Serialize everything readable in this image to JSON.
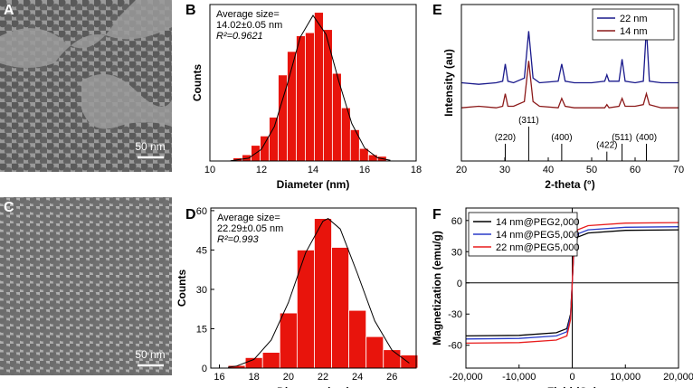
{
  "images": [
    {
      "label": "A",
      "scale_bar": "50 nm"
    },
    {
      "label": "C",
      "scale_bar": "50 nm"
    }
  ],
  "chart_data": [
    {
      "type": "histogram",
      "panel_label": "B",
      "xlabel": "Diameter (nm)",
      "ylabel": "Counts",
      "annotation": [
        "Average size=",
        "14.02±0.05 nm",
        "R²=0.9621"
      ],
      "bins": [
        10.9,
        11.25,
        11.6,
        11.95,
        12.3,
        12.65,
        13.0,
        13.35,
        13.7,
        14.05,
        14.4,
        14.75,
        15.1,
        15.45,
        15.8,
        16.15,
        16.5,
        16.85
      ],
      "values": [
        2,
        4,
        10,
        16,
        28,
        55,
        70,
        80,
        82,
        95,
        84,
        56,
        34,
        20,
        8,
        4,
        3
      ],
      "color": "#e8140c",
      "fit": {
        "x": [
          10.8,
          11.5,
          12,
          12.5,
          13,
          13.5,
          14,
          14.5,
          15,
          15.5,
          16,
          16.5,
          17
        ],
        "y": [
          0.15,
          1.8,
          7.5,
          22,
          49,
          79,
          93,
          81,
          51,
          24,
          8.3,
          2.1,
          0.4
        ]
      },
      "xlim": [
        10,
        18
      ],
      "xticks": [
        10,
        12,
        14,
        16,
        18
      ],
      "ylim": [
        0,
        100
      ]
    },
    {
      "type": "histogram",
      "panel_label": "D",
      "xlabel": "Diameter (nm)",
      "ylabel": "Counts",
      "annotation": [
        "Average size=",
        "22.29±0.05 nm",
        "R²=0.993"
      ],
      "bins": [
        16.5,
        17.5,
        18.5,
        19.5,
        20.5,
        21.5,
        22.5,
        23.5,
        24.5,
        25.5,
        26.5,
        27.5
      ],
      "values": [
        1,
        4,
        6,
        21,
        45,
        57,
        46,
        22,
        12,
        7,
        5
      ],
      "color": "#e8140c",
      "fit": {
        "x": [
          16.5,
          17,
          18,
          19,
          20,
          21,
          22,
          22.3,
          23,
          24,
          25,
          26,
          27
        ],
        "y": [
          0.3,
          0.8,
          3.3,
          10.7,
          25,
          44,
          56,
          57,
          53,
          36,
          18,
          6.8,
          1.9
        ]
      },
      "xlim": [
        15.5,
        27.4
      ],
      "xticks": [
        16,
        18,
        20,
        22,
        24,
        26
      ],
      "ylim": [
        0,
        61
      ],
      "yticks": [
        0,
        15,
        30,
        45,
        60
      ]
    },
    {
      "type": "line",
      "panel_label": "E",
      "xlabel": "2-theta (°)",
      "ylabel": "Intensity (au)",
      "legend": "upper right",
      "x": [
        20,
        24,
        28,
        29.5,
        30.1,
        30.7,
        32,
        34.5,
        35.5,
        36.5,
        38,
        42.3,
        43.1,
        43.9,
        46,
        50,
        53,
        53.5,
        54,
        56.3,
        57,
        57.7,
        60,
        61.9,
        62.6,
        63.3,
        66,
        70
      ],
      "series": [
        {
          "name": "22 nm",
          "color": "#1a1a8c",
          "values": [
            50,
            49,
            50,
            51,
            62,
            51,
            50,
            53,
            83,
            53,
            50,
            51,
            62,
            51,
            50,
            50,
            51,
            55,
            51,
            51,
            65,
            51,
            50,
            51,
            85,
            51,
            50,
            50
          ]
        },
        {
          "name": "14 nm",
          "color": "#8c1a1a",
          "values": [
            34,
            35,
            34,
            35,
            43,
            35,
            35,
            38,
            64,
            38,
            35,
            34,
            40,
            35,
            34,
            34,
            34,
            36,
            34,
            35,
            40,
            35,
            35,
            36,
            43,
            36,
            34,
            34
          ]
        }
      ],
      "reflections": [
        {
          "label": "(220)",
          "x": 30.1,
          "height": 11
        },
        {
          "label": "(311)",
          "x": 35.5,
          "height": 22
        },
        {
          "label": "(400)",
          "x": 43.1,
          "height": 11
        },
        {
          "label": "(422)",
          "x": 53.5,
          "height": 6
        },
        {
          "label": "(511)",
          "x": 57.0,
          "height": 11
        },
        {
          "label": "(400)",
          "x": 62.6,
          "height": 11
        }
      ],
      "xlim": [
        20,
        70
      ],
      "xticks": [
        20,
        30,
        40,
        50,
        60,
        70
      ],
      "ylim": [
        0,
        100
      ]
    },
    {
      "type": "line",
      "panel_label": "F",
      "xlabel": "Field (Oe)",
      "ylabel": "Magnetization (emu/g)",
      "legend": "upper left",
      "x": [
        -20000,
        -10000,
        -3000,
        -1000,
        -300,
        0,
        300,
        1000,
        3000,
        10000,
        20000
      ],
      "series": [
        {
          "name": "14 nm@PEG2,000",
          "color": "#000000",
          "values": [
            -51,
            -50.5,
            -48,
            -44,
            -30,
            0,
            30,
            44,
            48,
            50.5,
            51
          ]
        },
        {
          "name": "14 nm@PEG5,000",
          "color": "#2a3cc8",
          "values": [
            -54,
            -53.5,
            -51,
            -47,
            -32,
            0,
            32,
            47,
            51,
            53.5,
            54
          ]
        },
        {
          "name": "22 nm@PEG5,000",
          "color": "#e81c1c",
          "values": [
            -58,
            -57.5,
            -55,
            -51,
            -35,
            0,
            35,
            51,
            55,
            57.5,
            58
          ]
        }
      ],
      "xlim": [
        -20000,
        20000
      ],
      "xticks": [
        {
          "value": -20000,
          "label": "-20,000"
        },
        {
          "value": -10000,
          "label": "-10,000"
        },
        0,
        {
          "value": 10000,
          "label": "10,000"
        },
        {
          "value": 20000,
          "label": "20,000"
        }
      ],
      "ylim": [
        -82,
        72
      ],
      "yticks": [
        -60,
        -30,
        0,
        30,
        60
      ]
    }
  ]
}
